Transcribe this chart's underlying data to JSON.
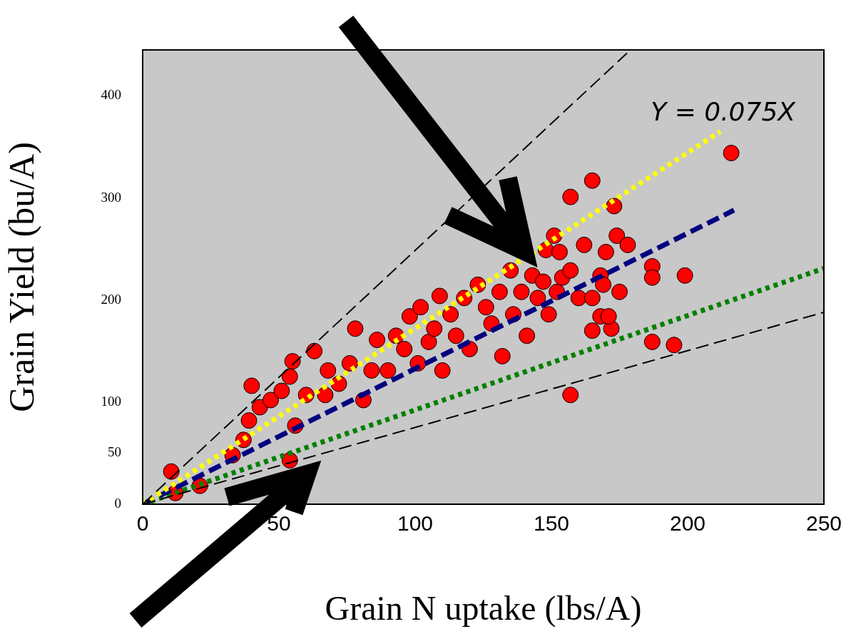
{
  "chart_data": {
    "type": "scatter",
    "xlabel": "Grain N uptake (lbs/A)",
    "ylabel": "Grain Yield (bu/A)",
    "xlim": [
      0,
      250
    ],
    "xticks": [
      0,
      50,
      100,
      150,
      200,
      250
    ],
    "ylim": [
      0,
      445
    ],
    "yticks": [
      0,
      50,
      100,
      200,
      300,
      400
    ],
    "grid": false,
    "legend": false,
    "marker": "circle",
    "annotations": [
      "Y = 0.075X"
    ],
    "series": [
      {
        "color": "#ff0000",
        "x": [
          10.5,
          12,
          21,
          33,
          37,
          39,
          40,
          43,
          47,
          51,
          54,
          55,
          56,
          54,
          63,
          60,
          67,
          68,
          72,
          76,
          78,
          81,
          84,
          86,
          90,
          93,
          96,
          98,
          101,
          102,
          105,
          107,
          109,
          110,
          113,
          115,
          118,
          120,
          123,
          126,
          128,
          131,
          132,
          135,
          136,
          139,
          141,
          143,
          145,
          147,
          148,
          149,
          151,
          152,
          153,
          154,
          157,
          160,
          162,
          165,
          168,
          170,
          174,
          178,
          157,
          165,
          173,
          168,
          175,
          169,
          157,
          165,
          172,
          171,
          187,
          187,
          199,
          187,
          195,
          216
        ],
        "values": [
          32,
          11,
          18,
          48,
          63,
          82,
          116,
          95,
          102,
          111,
          125,
          140,
          77,
          43,
          150,
          107,
          107,
          131,
          118,
          138,
          172,
          102,
          131,
          161,
          131,
          165,
          152,
          184,
          138,
          193,
          159,
          172,
          204,
          131,
          186,
          165,
          202,
          152,
          215,
          193,
          177,
          208,
          145,
          229,
          186,
          208,
          165,
          224,
          202,
          218,
          249,
          186,
          263,
          208,
          247,
          222,
          229,
          202,
          254,
          202,
          184,
          247,
          263,
          254,
          301,
          317,
          292,
          224,
          208,
          215,
          107,
          170,
          172,
          184,
          233,
          222,
          224,
          159,
          156,
          344
        ]
      },
      {
        "type": "line",
        "marker": "none",
        "color": "#000000",
        "line_style": "dashed",
        "x": [
          0,
          179
        ],
        "values": [
          0,
          445
        ]
      },
      {
        "type": "line",
        "marker": "none",
        "color": "#000000",
        "line_style": "dashed",
        "x": [
          0,
          250
        ],
        "values": [
          0,
          188
        ]
      },
      {
        "type": "line",
        "marker": "none",
        "color": "#ffff00",
        "line_style": "dotted",
        "x": [
          0,
          212
        ],
        "values": [
          0,
          365
        ]
      },
      {
        "type": "line",
        "marker": "none",
        "color": "#000080",
        "line_style": "dashed",
        "x": [
          0,
          217
        ],
        "values": [
          0,
          288
        ]
      },
      {
        "type": "line",
        "marker": "none",
        "color": "#008000",
        "line_style": "dotted",
        "x": [
          0,
          250
        ],
        "values": [
          0,
          231
        ]
      }
    ]
  }
}
